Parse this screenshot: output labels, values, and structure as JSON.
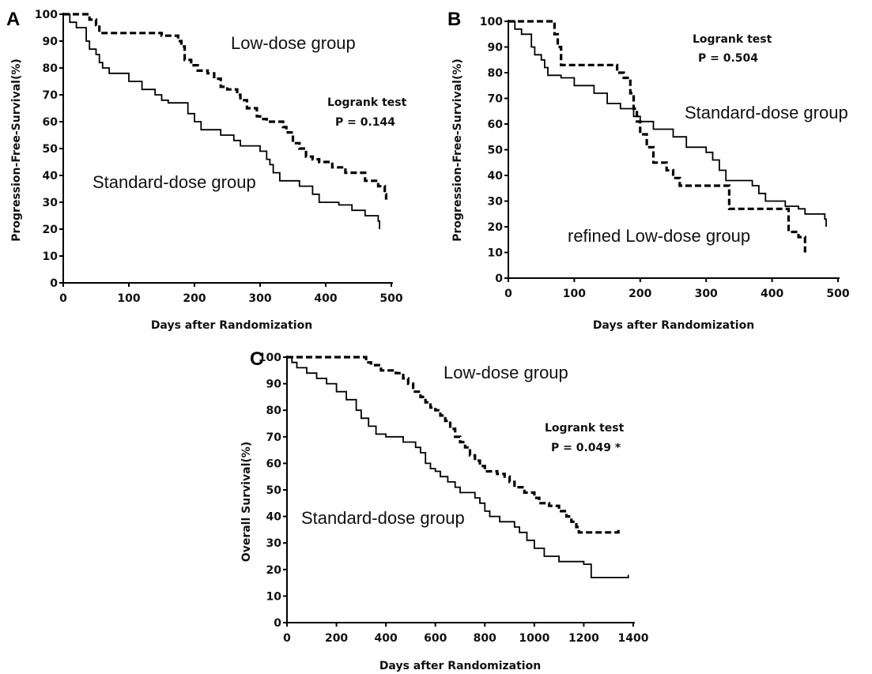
{
  "panels": [
    {
      "letter": "A",
      "ylabel": "Progression-Free-Survival(%)",
      "xlabel": "Days after Randomization",
      "logrank_title": "Logrank test",
      "logrank_p": "P = 0.144",
      "group_labels": [
        "Low-dose group",
        "Standard-dose group"
      ]
    },
    {
      "letter": "B",
      "ylabel": "Progression-Free-Survival(%)",
      "xlabel": "Days after Randomization",
      "logrank_title": "Logrank test",
      "logrank_p": "P = 0.504",
      "group_labels": [
        "Standard-dose group",
        "refined Low-dose group"
      ]
    },
    {
      "letter": "C",
      "ylabel": "Overall Survival(%)",
      "xlabel": "Days after Randomization",
      "logrank_title": "Logrank test",
      "logrank_p": "P = 0.049 *",
      "group_labels": [
        "Low-dose group",
        "Standard-dose group"
      ]
    }
  ],
  "chart_data": [
    {
      "type": "line",
      "step": true,
      "xlim": [
        0,
        500
      ],
      "ylim": [
        0,
        100
      ],
      "xticks": [
        0,
        100,
        200,
        300,
        400,
        500
      ],
      "yticks": [
        0,
        10,
        20,
        30,
        40,
        50,
        60,
        70,
        80,
        90,
        100
      ],
      "series": [
        {
          "name": "Low-dose group",
          "style": "dashed",
          "points": [
            [
              0,
              100
            ],
            [
              35,
              100
            ],
            [
              40,
              98
            ],
            [
              50,
              96
            ],
            [
              55,
              93
            ],
            [
              120,
              93
            ],
            [
              150,
              92
            ],
            [
              175,
              90
            ],
            [
              180,
              88
            ],
            [
              185,
              83
            ],
            [
              195,
              81
            ],
            [
              205,
              79
            ],
            [
              220,
              78
            ],
            [
              230,
              76
            ],
            [
              240,
              73
            ],
            [
              250,
              72
            ],
            [
              265,
              70
            ],
            [
              270,
              68
            ],
            [
              280,
              65
            ],
            [
              295,
              62
            ],
            [
              300,
              61
            ],
            [
              310,
              60
            ],
            [
              335,
              58
            ],
            [
              340,
              56
            ],
            [
              350,
              52
            ],
            [
              360,
              50
            ],
            [
              370,
              47
            ],
            [
              380,
              46
            ],
            [
              390,
              45
            ],
            [
              410,
              43
            ],
            [
              430,
              41
            ],
            [
              460,
              38
            ],
            [
              480,
              36
            ],
            [
              490,
              33
            ],
            [
              492,
              31
            ]
          ]
        },
        {
          "name": "Standard-dose group",
          "style": "solid",
          "points": [
            [
              0,
              100
            ],
            [
              10,
              97
            ],
            [
              20,
              95
            ],
            [
              35,
              90
            ],
            [
              40,
              87
            ],
            [
              50,
              85
            ],
            [
              55,
              82
            ],
            [
              60,
              80
            ],
            [
              70,
              78
            ],
            [
              100,
              75
            ],
            [
              120,
              72
            ],
            [
              140,
              70
            ],
            [
              150,
              68
            ],
            [
              160,
              67
            ],
            [
              190,
              63
            ],
            [
              200,
              60
            ],
            [
              210,
              57
            ],
            [
              240,
              55
            ],
            [
              260,
              53
            ],
            [
              270,
              51
            ],
            [
              300,
              49
            ],
            [
              310,
              46
            ],
            [
              315,
              44
            ],
            [
              320,
              41
            ],
            [
              330,
              38
            ],
            [
              360,
              36
            ],
            [
              380,
              33
            ],
            [
              390,
              30
            ],
            [
              420,
              29
            ],
            [
              440,
              27
            ],
            [
              460,
              25
            ],
            [
              480,
              23
            ],
            [
              482,
              20
            ]
          ]
        }
      ]
    },
    {
      "type": "line",
      "step": true,
      "xlim": [
        0,
        500
      ],
      "ylim": [
        0,
        100
      ],
      "xticks": [
        0,
        100,
        200,
        300,
        400,
        500
      ],
      "yticks": [
        0,
        10,
        20,
        30,
        40,
        50,
        60,
        70,
        80,
        90,
        100
      ],
      "series": [
        {
          "name": "refined Low-dose group",
          "style": "dashed",
          "points": [
            [
              0,
              100
            ],
            [
              65,
              100
            ],
            [
              70,
              95
            ],
            [
              75,
              90
            ],
            [
              80,
              83
            ],
            [
              150,
              83
            ],
            [
              165,
              80
            ],
            [
              175,
              78
            ],
            [
              185,
              72
            ],
            [
              190,
              66
            ],
            [
              195,
              61
            ],
            [
              200,
              56
            ],
            [
              210,
              51
            ],
            [
              220,
              45
            ],
            [
              240,
              42
            ],
            [
              250,
              39
            ],
            [
              260,
              36
            ],
            [
              330,
              36
            ],
            [
              335,
              27
            ],
            [
              420,
              27
            ],
            [
              425,
              18
            ],
            [
              440,
              16
            ],
            [
              450,
              10
            ]
          ]
        },
        {
          "name": "Standard-dose group",
          "style": "solid",
          "points": [
            [
              0,
              100
            ],
            [
              10,
              97
            ],
            [
              20,
              95
            ],
            [
              35,
              90
            ],
            [
              40,
              87
            ],
            [
              50,
              85
            ],
            [
              55,
              82
            ],
            [
              60,
              79
            ],
            [
              80,
              78
            ],
            [
              100,
              75
            ],
            [
              130,
              72
            ],
            [
              150,
              68
            ],
            [
              170,
              66
            ],
            [
              190,
              63
            ],
            [
              200,
              61
            ],
            [
              220,
              58
            ],
            [
              250,
              55
            ],
            [
              270,
              51
            ],
            [
              300,
              49
            ],
            [
              310,
              46
            ],
            [
              320,
              42
            ],
            [
              330,
              38
            ],
            [
              370,
              36
            ],
            [
              380,
              33
            ],
            [
              390,
              30
            ],
            [
              420,
              28
            ],
            [
              440,
              27
            ],
            [
              450,
              25
            ],
            [
              480,
              23
            ],
            [
              482,
              20
            ]
          ]
        }
      ]
    },
    {
      "type": "line",
      "step": true,
      "xlim": [
        0,
        1400
      ],
      "ylim": [
        0,
        100
      ],
      "xticks": [
        0,
        200,
        400,
        600,
        800,
        1000,
        1200,
        1400
      ],
      "yticks": [
        0,
        10,
        20,
        30,
        40,
        50,
        60,
        70,
        80,
        90,
        100
      ],
      "series": [
        {
          "name": "Low-dose group",
          "style": "dashed",
          "points": [
            [
              0,
              100
            ],
            [
              300,
              100
            ],
            [
              320,
              98
            ],
            [
              340,
              97
            ],
            [
              380,
              95
            ],
            [
              440,
              94
            ],
            [
              470,
              92
            ],
            [
              490,
              90
            ],
            [
              510,
              87
            ],
            [
              540,
              85
            ],
            [
              560,
              83
            ],
            [
              580,
              81
            ],
            [
              600,
              80
            ],
            [
              620,
              78
            ],
            [
              640,
              76
            ],
            [
              660,
              73
            ],
            [
              680,
              70
            ],
            [
              700,
              68
            ],
            [
              720,
              66
            ],
            [
              740,
              63
            ],
            [
              760,
              61
            ],
            [
              780,
              59
            ],
            [
              800,
              57
            ],
            [
              850,
              56
            ],
            [
              880,
              55
            ],
            [
              900,
              53
            ],
            [
              920,
              51
            ],
            [
              960,
              49
            ],
            [
              1000,
              47
            ],
            [
              1020,
              45
            ],
            [
              1060,
              44
            ],
            [
              1100,
              42
            ],
            [
              1130,
              40
            ],
            [
              1150,
              38
            ],
            [
              1170,
              36
            ],
            [
              1180,
              34
            ],
            [
              1340,
              35
            ]
          ]
        },
        {
          "name": "Standard-dose group",
          "style": "solid",
          "points": [
            [
              0,
              100
            ],
            [
              20,
              98
            ],
            [
              40,
              96
            ],
            [
              80,
              94
            ],
            [
              120,
              92
            ],
            [
              160,
              90
            ],
            [
              200,
              87
            ],
            [
              240,
              84
            ],
            [
              280,
              80
            ],
            [
              300,
              77
            ],
            [
              330,
              74
            ],
            [
              360,
              71
            ],
            [
              400,
              70
            ],
            [
              470,
              68
            ],
            [
              520,
              66
            ],
            [
              540,
              64
            ],
            [
              560,
              60
            ],
            [
              580,
              58
            ],
            [
              600,
              57
            ],
            [
              620,
              55
            ],
            [
              650,
              53
            ],
            [
              680,
              51
            ],
            [
              700,
              49
            ],
            [
              760,
              47
            ],
            [
              780,
              45
            ],
            [
              800,
              42
            ],
            [
              820,
              40
            ],
            [
              860,
              38
            ],
            [
              920,
              36
            ],
            [
              940,
              34
            ],
            [
              970,
              31
            ],
            [
              1000,
              28
            ],
            [
              1040,
              25
            ],
            [
              1100,
              23
            ],
            [
              1200,
              22
            ],
            [
              1230,
              17
            ],
            [
              1380,
              18
            ]
          ]
        }
      ]
    }
  ]
}
